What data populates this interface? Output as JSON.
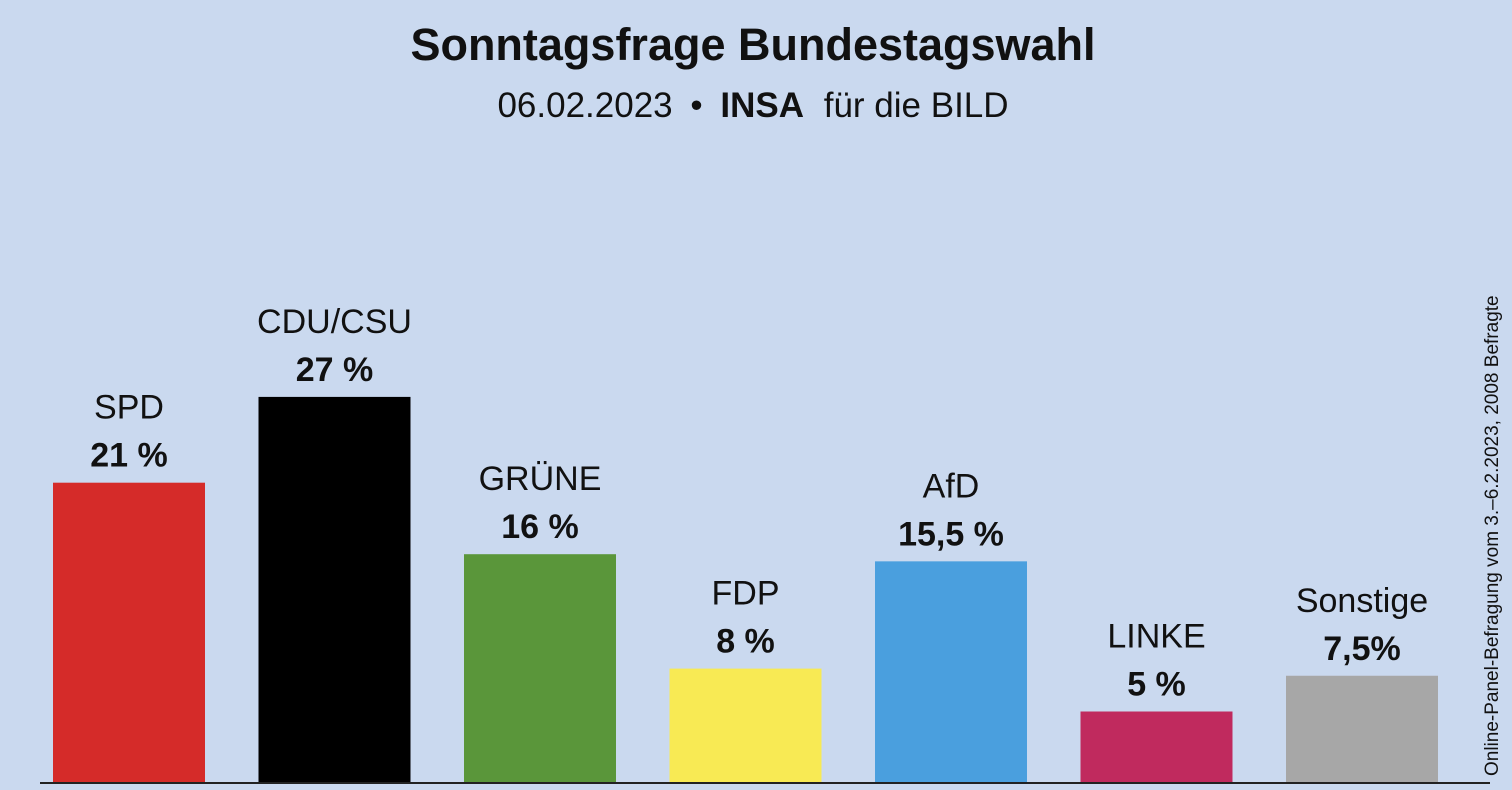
{
  "chart_data": {
    "type": "bar",
    "title": "Sonntagsfrage Bundestagswahl",
    "subtitle": {
      "date": "06.02.2023",
      "separator": "•",
      "institute": "INSA",
      "client": "für die BILD"
    },
    "side_note": "Online-Panel-Befragung vom 3.–6.2.2023, 2008 Befragte",
    "unit": "%",
    "categories": [
      "SPD",
      "CDU/CSU",
      "GRÜNE",
      "FDP",
      "AfD",
      "LINKE",
      "Sonstige"
    ],
    "values": [
      21,
      27,
      16,
      8,
      15.5,
      5,
      7.5
    ],
    "value_labels": [
      "21 %",
      "27 %",
      "16 %",
      "8 %",
      "15,5 %",
      "5 %",
      "7,5%"
    ],
    "colors": [
      "#d52b29",
      "#000000",
      "#5a963a",
      "#f8ea54",
      "#4a9fde",
      "#c02a5e",
      "#a7a7a7"
    ],
    "ylim": [
      0,
      30
    ],
    "grid": false,
    "legend": "none",
    "xlabel": "",
    "ylabel": ""
  }
}
